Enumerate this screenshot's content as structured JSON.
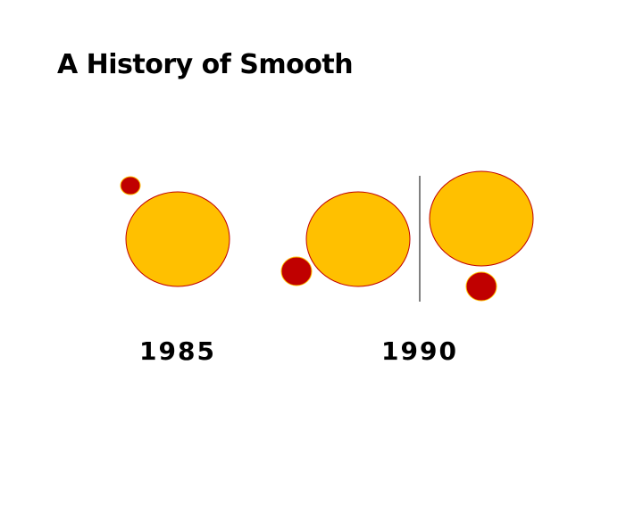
{
  "title": "A History of Smooth",
  "labels": [
    "1985",
    "1990"
  ]
}
